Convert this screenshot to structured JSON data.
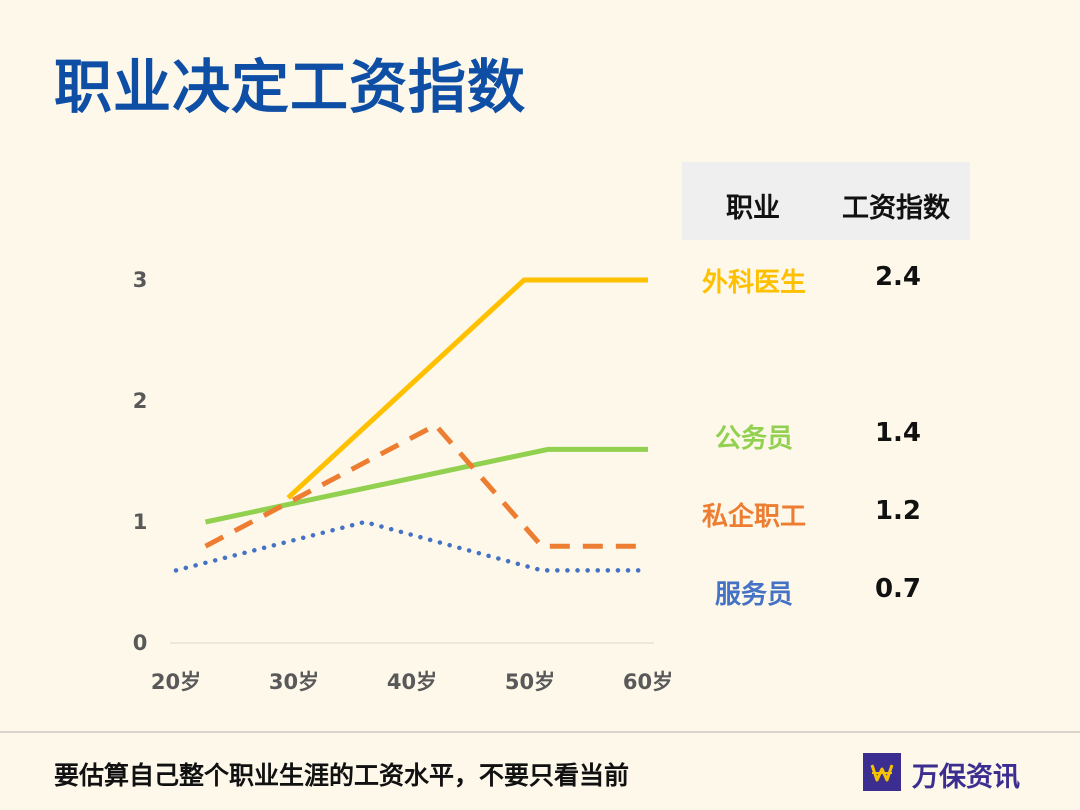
{
  "title": "职业决定工资指数",
  "table": {
    "header_occupation": "职业",
    "header_index": "工资指数",
    "rows": [
      {
        "name": "外科医生",
        "value": "2.4",
        "color": "#ffc000"
      },
      {
        "name": "公务员",
        "value": "1.4",
        "color": "#92d050"
      },
      {
        "name": "私企职工",
        "value": "1.2",
        "color": "#ed7d31"
      },
      {
        "name": "服务员",
        "value": "0.7",
        "color": "#4472c4"
      }
    ]
  },
  "chart_data": {
    "type": "line",
    "x_categories": [
      "20岁",
      "30岁",
      "40岁",
      "50岁",
      "60岁"
    ],
    "y_ticks": [
      "0",
      "1",
      "2",
      "3"
    ],
    "ylim": [
      0,
      3
    ],
    "grid": false,
    "series": [
      {
        "key": "surgeon",
        "style": "solid",
        "color": "#ffc000",
        "points": [
          [
            29.5,
            1.2
          ],
          [
            49.5,
            3.0
          ],
          [
            60,
            3.0
          ]
        ]
      },
      {
        "key": "civil-servant",
        "style": "solid",
        "color": "#92d050",
        "points": [
          [
            22.5,
            1.0
          ],
          [
            51.5,
            1.6
          ],
          [
            60,
            1.6
          ]
        ]
      },
      {
        "key": "private-employee",
        "style": "dashed",
        "color": "#ed7d31",
        "points": [
          [
            22.5,
            0.8
          ],
          [
            42,
            1.8
          ],
          [
            51,
            0.8
          ],
          [
            60,
            0.8
          ]
        ]
      },
      {
        "key": "waiter",
        "style": "dotted",
        "color": "#4472c4",
        "points": [
          [
            20,
            0.6
          ],
          [
            36,
            1.0
          ],
          [
            51,
            0.6
          ],
          [
            60,
            0.6
          ]
        ]
      }
    ]
  },
  "footer": {
    "text": "要估算自己整个职业生涯的工资水平，不要只看当前",
    "brand": "万保资讯"
  }
}
